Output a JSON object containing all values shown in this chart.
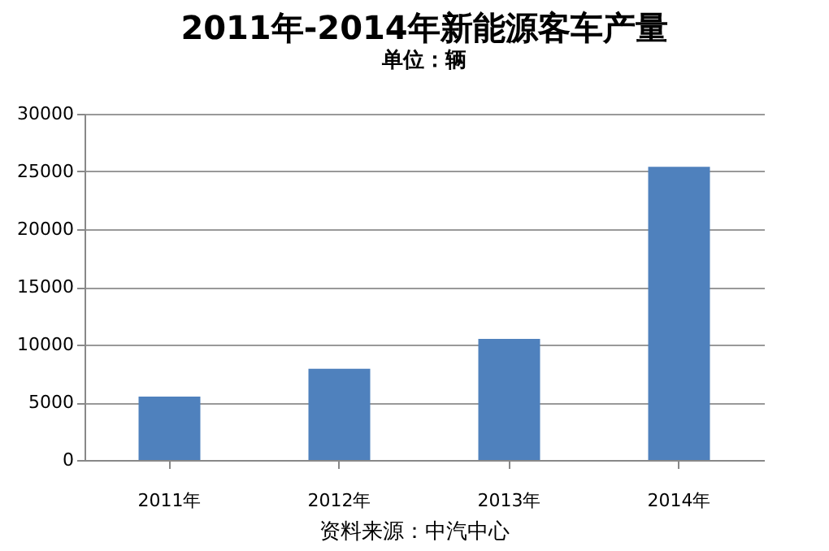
{
  "chart_data": {
    "type": "bar",
    "title": "2011年-2014年新能源客车产量",
    "subtitle": "单位：辆",
    "categories": [
      "2011年",
      "2012年",
      "2013年",
      "2014年"
    ],
    "values": [
      5500,
      7900,
      10500,
      25400
    ],
    "color": "#4f81bd",
    "ylim": [
      0,
      30000
    ],
    "yticks": [
      0,
      5000,
      10000,
      15000,
      20000,
      25000,
      30000
    ],
    "grid": "y",
    "annotations": [
      "资料来源：中汽中心"
    ]
  }
}
